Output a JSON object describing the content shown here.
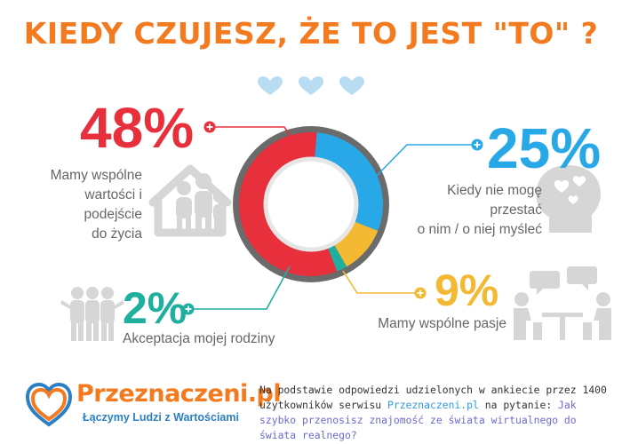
{
  "title": "KIEDY CZUJESZ, ŻE TO JEST \"TO\" ?",
  "colors": {
    "title": "#f47a20",
    "red": "#e8303d",
    "blue": "#29a8e8",
    "yellow": "#f4b933",
    "teal": "#1eaf9e",
    "heart": "#b8dcf2",
    "icon_gray": "#d6d6d6",
    "ring_gray": "#6b6b6b"
  },
  "chart_data": {
    "type": "pie",
    "title": "KIEDY CZUJESZ, ŻE TO JEST \"TO\" ?",
    "categories": [
      "Mamy wspólne wartości i podejście do życia",
      "Kiedy nie mogę przestać o nim / o niej myśleć",
      "Mamy wspólne pasje",
      "Akceptacja mojej rodziny"
    ],
    "values": [
      48,
      25,
      9,
      2
    ],
    "labels": [
      "48%",
      "25%",
      "9%",
      "2%"
    ],
    "colors": [
      "#e8303d",
      "#29a8e8",
      "#f4b933",
      "#1eaf9e"
    ]
  },
  "items": [
    {
      "pct": "48%",
      "lines": [
        "Mamy wspólne",
        "wartości i podejście",
        "do życia"
      ]
    },
    {
      "pct": "25%",
      "lines": [
        "Kiedy nie mogę",
        "przestać",
        "o nim / o niej myśleć"
      ]
    },
    {
      "pct": "9%",
      "lines": [
        "Mamy wspólne pasje"
      ]
    },
    {
      "pct": "2%",
      "lines": [
        "Akceptacja mojej rodziny"
      ]
    }
  ],
  "footer": {
    "brand": "Przeznaczeni.pl",
    "tagline": "Łączymy Ludzi z Wartościami",
    "text_before": "Na podstawie odpowiedzi udzielonych w ankiecie przez 1400 użytkowników serwisu ",
    "link": "Przeznaczeni.pl",
    "text_mid": " na pytanie: ",
    "question": "Jak szybko przenosisz znajomość ze świata wirtualnego do świata realnego?"
  }
}
